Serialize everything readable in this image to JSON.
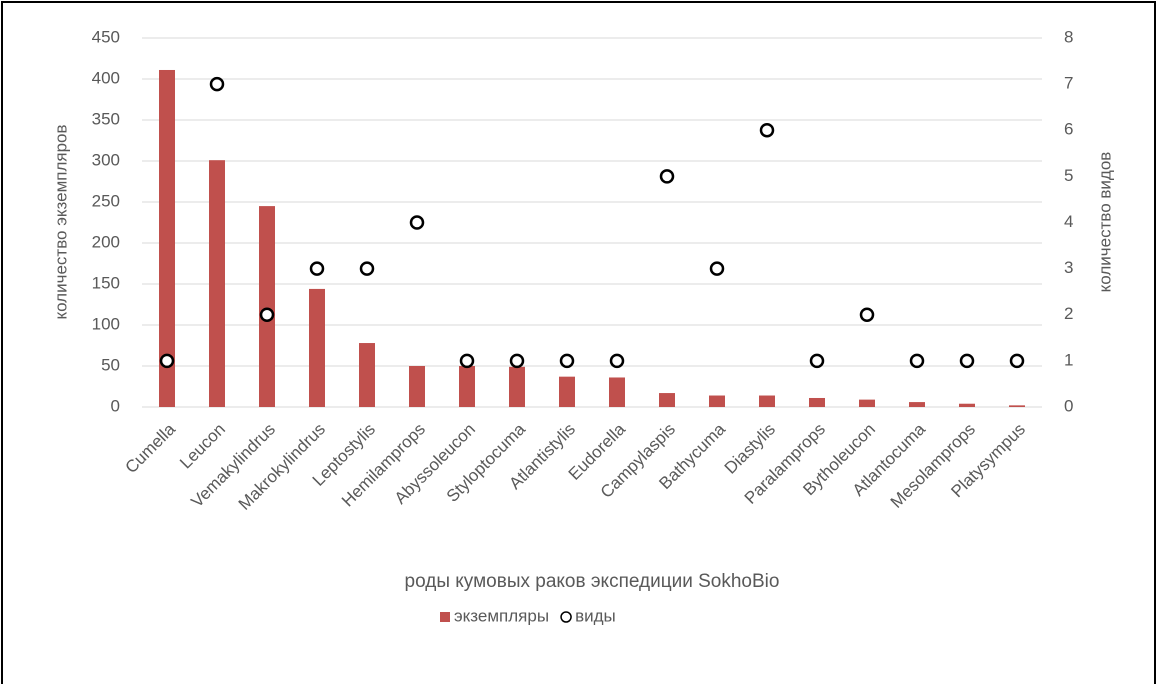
{
  "chart_data": {
    "type": "bar",
    "categories": [
      "Cumella",
      "Leucon",
      "Vemakylindrus",
      "Makrokylindrus",
      "Leptostylis",
      "Hemilamprops",
      "Abyssoleucon",
      "Styloptocuma",
      "Atlantistylis",
      "Eudorella",
      "Campylaspis",
      "Bathycuma",
      "Diastylis",
      "Paralamprops",
      "Bytholeucon",
      "Atlantocuma",
      "Mesolamprops",
      "Platysympus"
    ],
    "series": [
      {
        "name": "экземпляры",
        "type": "bar",
        "color": "#c0504d",
        "values": [
          411,
          301,
          245,
          144,
          78,
          50,
          50,
          49,
          37,
          36,
          17,
          14,
          14,
          11,
          9,
          6,
          4,
          2
        ]
      },
      {
        "name": "виды",
        "type": "scatter",
        "axis": "y2",
        "color": "#000000",
        "values": [
          1,
          7,
          2,
          3,
          3,
          4,
          1,
          1,
          1,
          1,
          5,
          3,
          6,
          1,
          2,
          1,
          1,
          1
        ]
      }
    ],
    "xlabel": "роды кумовых раков экспедиции SokhoBio",
    "ylabel": "количество экземпляров",
    "y2label": "количество видов",
    "ylim": [
      0,
      450
    ],
    "yticks": [
      0,
      50,
      100,
      150,
      200,
      250,
      300,
      350,
      400,
      450
    ],
    "y2lim": [
      0,
      8
    ],
    "y2ticks": [
      0,
      1,
      2,
      3,
      4,
      5,
      6,
      7,
      8
    ],
    "grid": true,
    "legend": "bottom"
  }
}
